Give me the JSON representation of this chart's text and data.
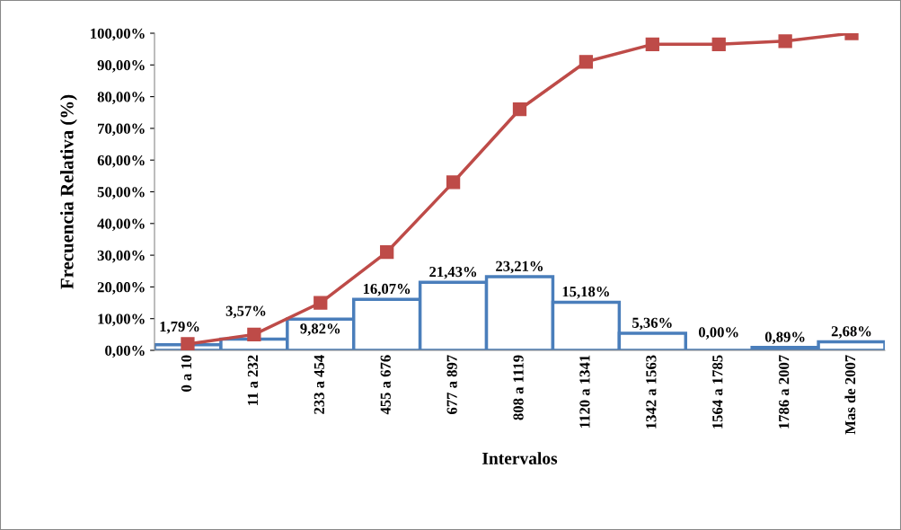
{
  "chart_data": {
    "type": "bar",
    "xlabel": "Intervalos",
    "ylabel": "Frecuencia Relativa (%)",
    "categories": [
      "0 a 10",
      "11 a 232",
      "233 a 454",
      "455 a 676",
      "677 a 897",
      "808 a 1119",
      "1120 a 1341",
      "1342 a 1563",
      "1564 a 1785",
      "1786 a 2007",
      "Mas de 2007"
    ],
    "series": [
      {
        "color": "#4a7ebb",
        "values": [
          1.79,
          3.57,
          9.82,
          16.07,
          21.43,
          23.21,
          15.18,
          5.36,
          0.0,
          0.89,
          2.68
        ],
        "value_labels": [
          "1,79%",
          "3,57%",
          "9,82%",
          "16,07%",
          "21,43%",
          "23,21%",
          "15,18%",
          "5,36%",
          "0,00%",
          "0,89%",
          "2,68%"
        ]
      },
      {
        "type": "line",
        "color": "#be4b48",
        "marker": "square",
        "line_style": "solid",
        "values": [
          2,
          5,
          15,
          31,
          53,
          76,
          91,
          96.5,
          96.5,
          97.5,
          100
        ]
      }
    ],
    "ylim": [
      0,
      100
    ],
    "yticks": [
      {
        "value": 0,
        "label": "0,00%"
      },
      {
        "value": 10,
        "label": "10,00%"
      },
      {
        "value": 20,
        "label": "20,00%"
      },
      {
        "value": 30,
        "label": "30,00%"
      },
      {
        "value": 40,
        "label": "40,00%"
      },
      {
        "value": 50,
        "label": "50,00%"
      },
      {
        "value": 60,
        "label": "60,00%"
      },
      {
        "value": 70,
        "label": "70,00%"
      },
      {
        "value": 80,
        "label": "80,00%"
      },
      {
        "value": 90,
        "label": "90,00%"
      },
      {
        "value": 100,
        "label": "100,00%"
      }
    ],
    "grid": false,
    "legend": false
  }
}
